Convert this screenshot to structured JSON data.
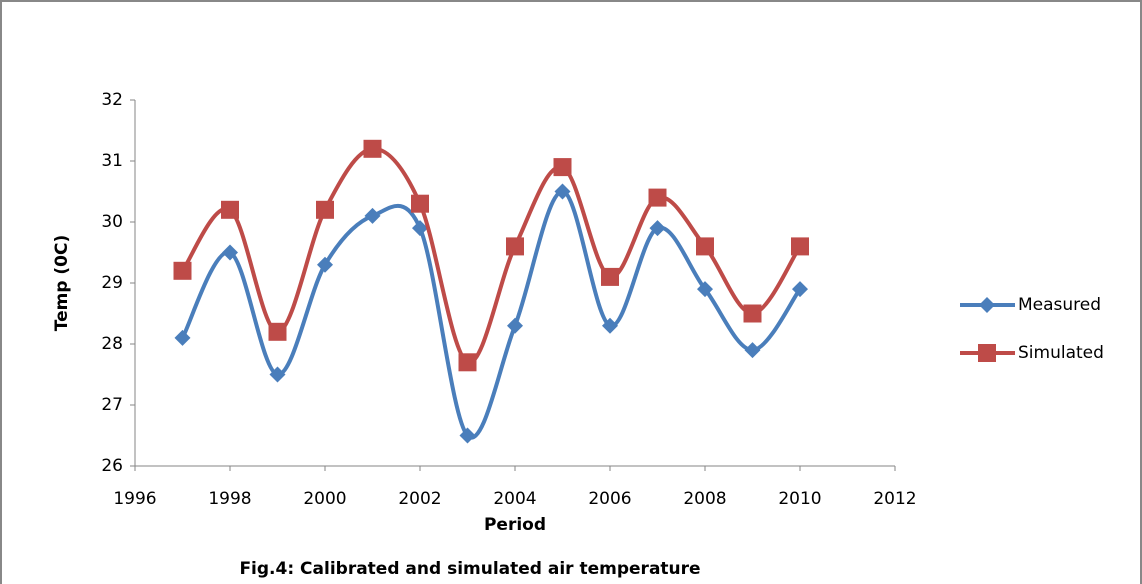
{
  "chart_data": {
    "type": "line",
    "caption": "Fig.4: Calibrated and simulated air temperature",
    "x_label": "Period",
    "y_label": "Temp (0C)",
    "x": [
      1997,
      1998,
      1999,
      2000,
      2001,
      2002,
      2003,
      2004,
      2005,
      2006,
      2007,
      2008,
      2009,
      2010
    ],
    "series": [
      {
        "name": "Measured",
        "color": "#4a7ebb",
        "marker": "diamond",
        "values": [
          28.1,
          29.5,
          27.5,
          29.3,
          30.1,
          29.9,
          26.5,
          28.3,
          30.5,
          28.3,
          29.9,
          28.9,
          27.9,
          28.9
        ]
      },
      {
        "name": "Simulated",
        "color": "#be4b48",
        "marker": "square",
        "values": [
          29.2,
          30.2,
          28.2,
          30.2,
          31.2,
          30.3,
          27.7,
          29.6,
          30.9,
          29.1,
          30.4,
          29.6,
          28.5,
          29.6
        ]
      }
    ],
    "xlim": [
      1996,
      2012
    ],
    "xticks": [
      1996,
      1998,
      2000,
      2002,
      2004,
      2006,
      2008,
      2010,
      2012
    ],
    "ylim": [
      26,
      32
    ],
    "yticks": [
      26,
      27,
      28,
      29,
      30,
      31,
      32
    ],
    "smooth": true,
    "legend": "right",
    "grid": false
  }
}
